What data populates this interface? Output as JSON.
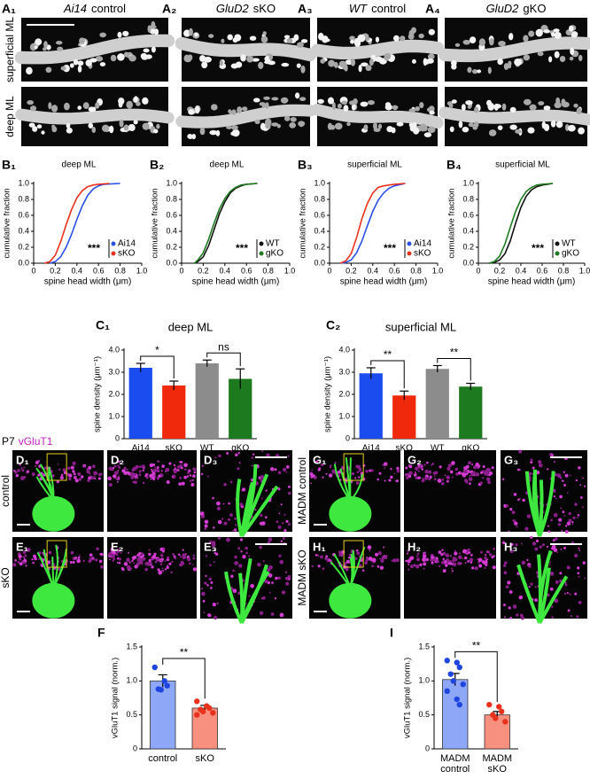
{
  "figure_a": {
    "panels": [
      {
        "label": "A₁",
        "genotype": "Ai14",
        "condition": "control"
      },
      {
        "label": "A₂",
        "genotype": "GluD2",
        "condition": "sKO"
      },
      {
        "label": "A₃",
        "genotype": "WT",
        "condition": "control"
      },
      {
        "label": "A₄",
        "genotype": "GluD2",
        "condition": "gKO"
      }
    ],
    "rows": [
      "superficial ML",
      "deep ML"
    ]
  },
  "figure_d": {
    "stain": [
      "P7",
      "vGluT1"
    ],
    "left": [
      {
        "name": "control",
        "panels": [
          "D₁",
          "D₂",
          "D₃"
        ]
      },
      {
        "name": "sKO",
        "panels": [
          "E₁",
          "E₂",
          "E₃"
        ]
      }
    ],
    "right": [
      {
        "name": "MADM control",
        "panels": [
          "G₁",
          "G₂",
          "G₃"
        ]
      },
      {
        "name": "MADM sKO",
        "panels": [
          "H₁",
          "H₂",
          "H₃"
        ]
      }
    ]
  },
  "chart_data": [
    {
      "type": "line",
      "panel": "B₁",
      "title": "deep ML",
      "x_label": "spine head width (μm)",
      "y_label": "cumulative fraction",
      "xlim": [
        0,
        1
      ],
      "ylim": [
        0,
        1
      ],
      "xticks": [
        0,
        0.2,
        0.4,
        0.6,
        0.8,
        {
          "value": 1,
          "label": "1.0"
        }
      ],
      "yticks": [
        {
          "value": 0,
          "label": "0.0"
        },
        0.2,
        0.4,
        0.6,
        0.8,
        {
          "value": 1,
          "label": "1.0"
        }
      ],
      "annotation": "***",
      "series": [
        {
          "name": "Ai14",
          "color": "#2b50e8",
          "x": [
            0.15,
            0.2,
            0.25,
            0.3,
            0.35,
            0.4,
            0.45,
            0.5,
            0.55,
            0.6,
            0.65,
            0.8
          ],
          "values": [
            0,
            0.02,
            0.08,
            0.2,
            0.36,
            0.55,
            0.72,
            0.85,
            0.93,
            0.97,
            0.99,
            1.0
          ]
        },
        {
          "name": "sKO",
          "color": "#e8321e",
          "x": [
            0.1,
            0.15,
            0.2,
            0.25,
            0.3,
            0.35,
            0.4,
            0.45,
            0.5,
            0.55,
            0.6,
            0.7
          ],
          "values": [
            0,
            0.02,
            0.1,
            0.27,
            0.48,
            0.67,
            0.82,
            0.91,
            0.96,
            0.98,
            0.99,
            1.0
          ]
        }
      ]
    },
    {
      "type": "line",
      "panel": "B₂",
      "title": "deep ML",
      "x_label": "spine head width (μm)",
      "y_label": "cumulative fraction",
      "xlim": [
        0,
        1
      ],
      "ylim": [
        0,
        1
      ],
      "xticks": [
        0,
        0.2,
        0.4,
        0.6,
        0.8,
        {
          "value": 1,
          "label": "1.0"
        }
      ],
      "yticks": [
        {
          "value": 0,
          "label": "0.0"
        },
        0.2,
        0.4,
        0.6,
        0.8,
        {
          "value": 1,
          "label": "1.0"
        }
      ],
      "annotation": "***",
      "series": [
        {
          "name": "WT",
          "color": "#111111",
          "x": [
            0.12,
            0.15,
            0.2,
            0.25,
            0.3,
            0.35,
            0.4,
            0.45,
            0.5,
            0.55,
            0.6,
            0.7
          ],
          "values": [
            0,
            0.02,
            0.08,
            0.22,
            0.42,
            0.62,
            0.77,
            0.88,
            0.94,
            0.97,
            0.99,
            1.0
          ]
        },
        {
          "name": "gKO",
          "color": "#1e7a1e",
          "x": [
            0.12,
            0.15,
            0.2,
            0.25,
            0.3,
            0.35,
            0.4,
            0.45,
            0.5,
            0.55,
            0.6,
            0.7
          ],
          "values": [
            0,
            0.04,
            0.13,
            0.3,
            0.5,
            0.68,
            0.81,
            0.9,
            0.95,
            0.98,
            0.99,
            1.0
          ]
        }
      ]
    },
    {
      "type": "line",
      "panel": "B₃",
      "title": "superficial ML",
      "x_label": "spine head width (μm)",
      "y_label": "cumulative fraction",
      "xlim": [
        0,
        1
      ],
      "ylim": [
        0,
        1
      ],
      "xticks": [
        0,
        0.2,
        0.4,
        0.6,
        0.8,
        {
          "value": 1,
          "label": "1.0"
        }
      ],
      "yticks": [
        {
          "value": 0,
          "label": "0.0"
        },
        0.2,
        0.4,
        0.6,
        0.8,
        {
          "value": 1,
          "label": "1.0"
        }
      ],
      "annotation": "***",
      "series": [
        {
          "name": "Ai14",
          "color": "#2b50e8",
          "x": [
            0.1,
            0.15,
            0.2,
            0.25,
            0.3,
            0.35,
            0.4,
            0.45,
            0.5,
            0.55,
            0.6,
            0.7
          ],
          "values": [
            0,
            0.01,
            0.04,
            0.13,
            0.28,
            0.47,
            0.65,
            0.79,
            0.88,
            0.94,
            0.97,
            1.0
          ]
        },
        {
          "name": "sKO",
          "color": "#e8321e",
          "x": [
            0.1,
            0.15,
            0.2,
            0.25,
            0.3,
            0.35,
            0.4,
            0.45,
            0.5,
            0.55,
            0.6,
            0.7
          ],
          "values": [
            0,
            0.03,
            0.12,
            0.32,
            0.56,
            0.75,
            0.88,
            0.95,
            0.97,
            0.98,
            0.99,
            1.0
          ]
        }
      ]
    },
    {
      "type": "line",
      "panel": "B₄",
      "title": "superficial ML",
      "x_label": "spine head width (μm)",
      "y_label": "cumulative fraction",
      "xlim": [
        0,
        1
      ],
      "ylim": [
        0,
        1
      ],
      "xticks": [
        0,
        0.2,
        0.4,
        0.6,
        0.8,
        {
          "value": 1,
          "label": "1.0"
        }
      ],
      "yticks": [
        {
          "value": 0,
          "label": "0.0"
        },
        0.2,
        0.4,
        0.6,
        0.8,
        {
          "value": 1,
          "label": "1.0"
        }
      ],
      "annotation": "***",
      "series": [
        {
          "name": "WT",
          "color": "#111111",
          "x": [
            0.1,
            0.15,
            0.2,
            0.25,
            0.3,
            0.35,
            0.4,
            0.45,
            0.5,
            0.55,
            0.6,
            0.7
          ],
          "values": [
            0,
            0.01,
            0.04,
            0.12,
            0.28,
            0.5,
            0.7,
            0.84,
            0.92,
            0.96,
            0.98,
            1.0
          ]
        },
        {
          "name": "gKO",
          "color": "#1e7a1e",
          "x": [
            0.1,
            0.15,
            0.2,
            0.25,
            0.3,
            0.35,
            0.4,
            0.45,
            0.5,
            0.55,
            0.6,
            0.7
          ],
          "values": [
            0,
            0.02,
            0.09,
            0.24,
            0.45,
            0.65,
            0.8,
            0.9,
            0.95,
            0.98,
            0.99,
            1.0
          ]
        }
      ]
    },
    {
      "type": "bar",
      "panel": "C₁",
      "title": "deep ML",
      "y_label": "spine density (μm⁻¹)",
      "categories": [
        "Ai14",
        "sKO",
        "WT",
        "gKO"
      ],
      "values": [
        3.2,
        2.4,
        3.4,
        2.7
      ],
      "errors": [
        0.2,
        0.2,
        0.15,
        0.45
      ],
      "colors": [
        "#1a4cf0",
        "#f0280c",
        "#8c8c8c",
        "#1e7a1e"
      ],
      "ylim": [
        0,
        4
      ],
      "yticks": [
        0,
        {
          "value": 1,
          "label": "1.0"
        },
        {
          "value": 2,
          "label": "2.0"
        },
        {
          "value": 3,
          "label": "3.0"
        },
        {
          "value": 4,
          "label": "4.0"
        }
      ],
      "significance": [
        "*",
        "ns"
      ]
    },
    {
      "type": "bar",
      "panel": "C₂",
      "title": "superficial ML",
      "y_label": "spine density (μm⁻¹)",
      "categories": [
        "Ai14",
        "sKO",
        "WT",
        "gKO"
      ],
      "values": [
        2.95,
        1.95,
        3.15,
        2.35
      ],
      "errors": [
        0.25,
        0.2,
        0.15,
        0.15
      ],
      "colors": [
        "#1a4cf0",
        "#f0280c",
        "#8c8c8c",
        "#1e7a1e"
      ],
      "ylim": [
        0,
        4
      ],
      "yticks": [
        0,
        {
          "value": 1,
          "label": "1.0"
        },
        {
          "value": 2,
          "label": "2.0"
        },
        {
          "value": 3,
          "label": "3.0"
        },
        {
          "value": 4,
          "label": "4.0"
        }
      ],
      "significance": [
        "**",
        "**"
      ]
    },
    {
      "type": "bar",
      "panel": "F",
      "y_label": "vGluT1 signal (norm.)",
      "categories": [
        "control",
        "sKO"
      ],
      "values": [
        1.0,
        0.6
      ],
      "errors": [
        0.09,
        0.04
      ],
      "colors": [
        "#8ea7f7",
        "#f7907f"
      ],
      "point_colors": [
        "#1f45e0",
        "#e8321e"
      ],
      "points": [
        [
          1.2,
          1.0,
          0.93,
          0.88,
          0.87
        ],
        [
          0.7,
          0.63,
          0.6,
          0.58,
          0.55,
          0.53,
          0.5
        ]
      ],
      "ylim": [
        0,
        1.5
      ],
      "yticks": [
        0,
        0.5,
        {
          "value": 1,
          "label": "1.0"
        },
        1.5
      ],
      "significance": [
        "**"
      ]
    },
    {
      "type": "bar",
      "panel": "I",
      "y_label": "vGluT1 signal (norm.)",
      "categories": [
        [
          "MADM",
          "control"
        ],
        [
          "MADM",
          "sKO"
        ]
      ],
      "values": [
        1.02,
        0.5
      ],
      "errors": [
        0.09,
        0.05
      ],
      "colors": [
        "#8ea7f7",
        "#f7907f"
      ],
      "point_colors": [
        "#1f45e0",
        "#e8321e"
      ],
      "points": [
        [
          1.3,
          1.27,
          1.2,
          1.1,
          1.0,
          0.95,
          0.85,
          0.73,
          0.65
        ],
        [
          0.65,
          0.62,
          0.55,
          0.5,
          0.45,
          0.4
        ]
      ],
      "ylim": [
        0,
        1.5
      ],
      "yticks": [
        0,
        0.5,
        {
          "value": 1,
          "label": "1.0"
        },
        1.5
      ],
      "significance": [
        "**"
      ]
    }
  ]
}
